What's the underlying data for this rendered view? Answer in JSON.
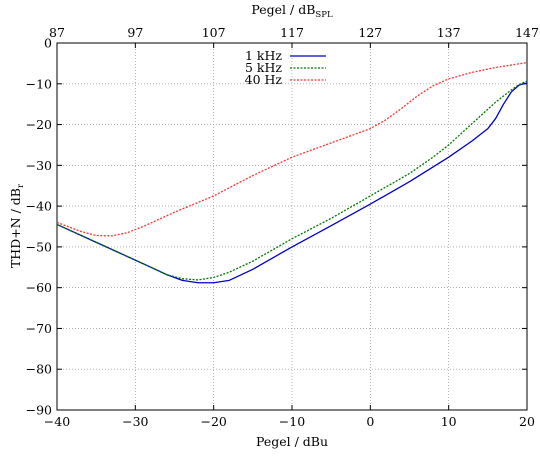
{
  "chart_data": {
    "type": "line",
    "xlabel": "Pegel / dBu",
    "ylabel": "THD+N / dB",
    "ylabel_sub": "r",
    "x2label": "Pegel / dB",
    "x2label_sub": "SPL",
    "xlim": [
      -40,
      20
    ],
    "ylim": [
      -90,
      0
    ],
    "x2lim": [
      87,
      147
    ],
    "x_ticks": [
      -40,
      -30,
      -20,
      -10,
      0,
      10,
      20
    ],
    "x_tick_labels": [
      "−40",
      "−30",
      "−20",
      "−10",
      "0",
      "10",
      "20"
    ],
    "y_ticks": [
      0,
      -10,
      -20,
      -30,
      -40,
      -50,
      -60,
      -70,
      -80,
      -90
    ],
    "y_tick_labels": [
      "0",
      "−10",
      "−20",
      "−30",
      "−40",
      "−50",
      "−60",
      "−70",
      "−80",
      "−90"
    ],
    "x2_ticks": [
      87,
      97,
      107,
      117,
      127,
      137,
      147
    ],
    "x2_tick_labels": [
      "87",
      "97",
      "107",
      "117",
      "127",
      "137",
      "147"
    ],
    "grid": true,
    "legend_position": "top-center",
    "series": [
      {
        "name": "1 kHz",
        "color": "#0000cc",
        "dash": "solid",
        "x": [
          -40,
          -36,
          -32,
          -28,
          -26,
          -24,
          -22,
          -20,
          -18,
          -15,
          -10,
          -5,
          0,
          5,
          10,
          13,
          15,
          16,
          17,
          18,
          19,
          20
        ],
        "y": [
          -44.5,
          -48,
          -51.5,
          -55,
          -56.8,
          -58.2,
          -58.8,
          -58.8,
          -58.2,
          -55.5,
          -50,
          -44.8,
          -39.5,
          -34,
          -28,
          -24,
          -21,
          -18.5,
          -15,
          -12,
          -10.3,
          -9.8
        ]
      },
      {
        "name": "5 kHz",
        "color": "#007700",
        "dash": "dotted",
        "x": [
          -40,
          -36,
          -32,
          -28,
          -26,
          -24,
          -22,
          -20,
          -18,
          -15,
          -10,
          -5,
          0,
          5,
          8,
          10,
          12,
          14,
          16,
          18,
          19,
          20
        ],
        "y": [
          -44.5,
          -48,
          -51.5,
          -55,
          -56.8,
          -57.8,
          -58.1,
          -57.5,
          -56.2,
          -53.5,
          -48,
          -43,
          -37.5,
          -32,
          -28,
          -25,
          -21.5,
          -18,
          -14.5,
          -11.5,
          -10.2,
          -9.3
        ]
      },
      {
        "name": "40 Hz",
        "color": "#ff3333",
        "dash": "dotted",
        "x": [
          -40,
          -37,
          -35,
          -33,
          -31,
          -29,
          -25,
          -20,
          -15,
          -10,
          -5,
          0,
          2,
          4,
          6,
          8,
          10,
          13,
          16,
          20
        ],
        "y": [
          -44,
          -46.2,
          -47.2,
          -47.3,
          -46.5,
          -45,
          -41.5,
          -37.5,
          -32.5,
          -28,
          -24.5,
          -21,
          -18.8,
          -16,
          -13,
          -10.5,
          -8.8,
          -7.2,
          -6,
          -4.8
        ]
      }
    ]
  }
}
